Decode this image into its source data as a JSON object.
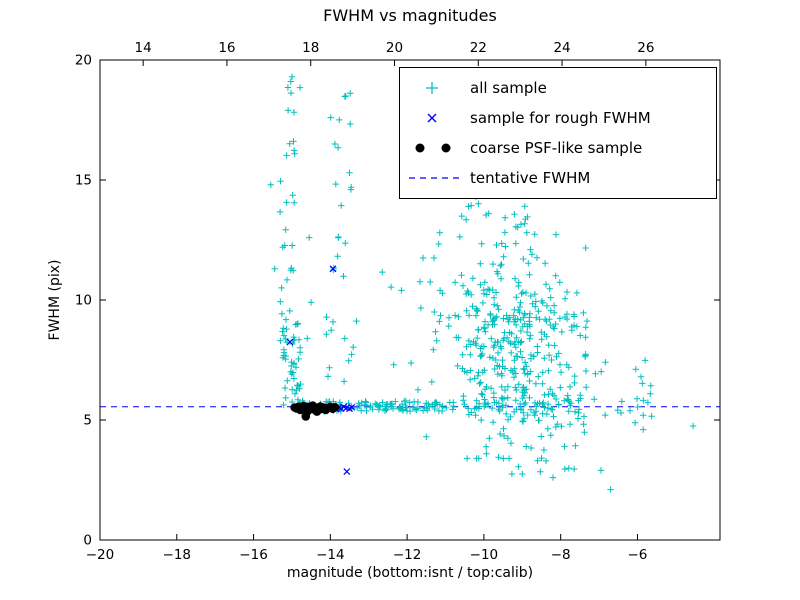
{
  "chart_data": {
    "type": "scatter",
    "title": "FWHM vs magnitudes",
    "xlabel": "magnitude (bottom:isnt / top:calib)",
    "ylabel": "FWHM (pix)",
    "xlim": [
      -20,
      -3.85
    ],
    "ylim": [
      0,
      20
    ],
    "x_ticks_bottom": [
      -20,
      -18,
      -16,
      -14,
      -12,
      -10,
      -8,
      -6
    ],
    "top_axis": {
      "lim": [
        12.97,
        27.77
      ],
      "ticks": [
        14,
        16,
        18,
        20,
        22,
        24,
        26
      ]
    },
    "y_ticks": [
      0,
      5,
      10,
      15,
      20
    ],
    "grid": false,
    "legend_position": "upper right",
    "tentative_fwhm": 5.55,
    "colors": {
      "all_sample": "#00bfbf",
      "rough_fwhm": "#0000ff",
      "psf_like": "#000000",
      "tentative_line": "#0000ff"
    },
    "series": [
      {
        "name": "all sample",
        "marker": "plus",
        "color": "#00bfbf",
        "clusters": [
          {
            "type": "uniform",
            "x": [
              -15.32,
              -14.88
            ],
            "y": [
              9.2,
              19.2
            ],
            "count": 26
          },
          {
            "type": "uniform",
            "x": [
              -15.28,
              -14.72
            ],
            "y": [
              5.5,
              9.2
            ],
            "count": 48
          },
          {
            "type": "uniform",
            "x": [
              -13.95,
              -13.35
            ],
            "y": [
              10.8,
              19.0
            ],
            "count": 16
          },
          {
            "type": "uniform",
            "x": [
              -14.15,
              -13.25
            ],
            "y": [
              5.9,
              9.6
            ],
            "count": 12
          },
          {
            "type": "uniform",
            "x": [
              -14.85,
              -10.6
            ],
            "y": [
              5.35,
              5.8
            ],
            "count": 115
          },
          {
            "type": "uniform",
            "x": [
              -10.6,
              -7.5
            ],
            "y": [
              5.15,
              6.15
            ],
            "count": 55
          },
          {
            "type": "gauss",
            "cx": -9.35,
            "cy": 8.3,
            "sx": 0.78,
            "sy": 2.1,
            "count": 320,
            "clip_x": [
              -11.4,
              -7.35
            ],
            "clip_y": [
              3.4,
              14.6
            ]
          },
          {
            "type": "uniform",
            "x": [
              -10.7,
              -8.7
            ],
            "y": [
              12.6,
              14.9
            ],
            "count": 22
          },
          {
            "type": "uniform",
            "x": [
              -8.45,
              -7.3
            ],
            "y": [
              4.7,
              9.6
            ],
            "count": 40
          },
          {
            "type": "uniform",
            "x": [
              -7.45,
              -5.6
            ],
            "y": [
              4.4,
              7.6
            ],
            "count": 26
          },
          {
            "type": "uniform",
            "x": [
              -9.9,
              -7.3
            ],
            "y": [
              2.7,
              4.5
            ],
            "count": 16
          },
          {
            "type": "uniform",
            "x": [
              -12.75,
              -11.05
            ],
            "y": [
              5.9,
              12.5
            ],
            "count": 13
          }
        ],
        "points": [
          [
            -14.79,
            18.85
          ],
          [
            -13.99,
            17.6
          ],
          [
            -13.88,
            16.5
          ],
          [
            -15.0,
            19.3
          ],
          [
            -15.1,
            17.9
          ],
          [
            -13.6,
            18.5
          ],
          [
            -13.5,
            15.3
          ],
          [
            -15.55,
            14.8
          ],
          [
            -15.45,
            11.3
          ],
          [
            -11.5,
            4.3
          ],
          [
            -11.3,
            11.75
          ],
          [
            -11.15,
            12.8
          ],
          [
            -6.95,
            2.9
          ],
          [
            -6.7,
            2.1
          ],
          [
            -5.85,
            4.6
          ],
          [
            -4.55,
            4.75
          ],
          [
            -12.15,
            10.4
          ],
          [
            -12.35,
            7.3
          ],
          [
            -10.15,
            14.6
          ],
          [
            -9.85,
            14.9
          ],
          [
            -10.4,
            13.9
          ],
          [
            -14.55,
            12.6
          ],
          [
            -14.5,
            9.9
          ],
          [
            -14.6,
            8.4
          ],
          [
            -15.3,
            8.3
          ],
          [
            -9.0,
            2.75
          ],
          [
            -8.6,
            3.3
          ],
          [
            -8.2,
            2.6
          ],
          [
            -7.9,
            3.9
          ],
          [
            -13.3,
            5.5
          ],
          [
            -13.1,
            5.6
          ],
          [
            -12.9,
            5.45
          ],
          [
            -12.7,
            5.55
          ]
        ]
      },
      {
        "name": "sample for rough FWHM",
        "marker": "x",
        "color": "#0000ff",
        "points": [
          [
            -14.05,
            5.55
          ],
          [
            -13.98,
            5.5
          ],
          [
            -13.92,
            5.58
          ],
          [
            -13.85,
            5.45
          ],
          [
            -13.78,
            5.52
          ],
          [
            -13.72,
            5.48
          ],
          [
            -13.65,
            5.55
          ],
          [
            -13.58,
            5.5
          ],
          [
            -13.5,
            5.47
          ],
          [
            -13.44,
            5.53
          ],
          [
            -13.93,
            11.3
          ],
          [
            -13.57,
            2.85
          ],
          [
            -15.05,
            8.25
          ]
        ]
      },
      {
        "name": "coarse PSF-like sample",
        "marker": "dot",
        "color": "#000000",
        "points": [
          [
            -14.93,
            5.52
          ],
          [
            -14.88,
            5.48
          ],
          [
            -14.83,
            5.55
          ],
          [
            -14.78,
            5.42
          ],
          [
            -14.74,
            5.5
          ],
          [
            -14.7,
            5.58
          ],
          [
            -14.66,
            5.45
          ],
          [
            -14.62,
            5.52
          ],
          [
            -14.58,
            5.38
          ],
          [
            -14.55,
            5.55
          ],
          [
            -14.5,
            5.48
          ],
          [
            -14.46,
            5.6
          ],
          [
            -14.42,
            5.44
          ],
          [
            -14.38,
            5.52
          ],
          [
            -14.35,
            5.35
          ],
          [
            -14.3,
            5.5
          ],
          [
            -14.26,
            5.56
          ],
          [
            -14.22,
            5.46
          ],
          [
            -14.18,
            5.52
          ],
          [
            -14.12,
            5.42
          ],
          [
            -14.06,
            5.5
          ],
          [
            -14.0,
            5.55
          ],
          [
            -13.94,
            5.47
          ],
          [
            -13.88,
            5.53
          ],
          [
            -14.64,
            5.15
          ]
        ]
      },
      {
        "name": "tentative FWHM",
        "marker": "dashed",
        "color": "#0000ff",
        "y": 5.55
      }
    ]
  }
}
